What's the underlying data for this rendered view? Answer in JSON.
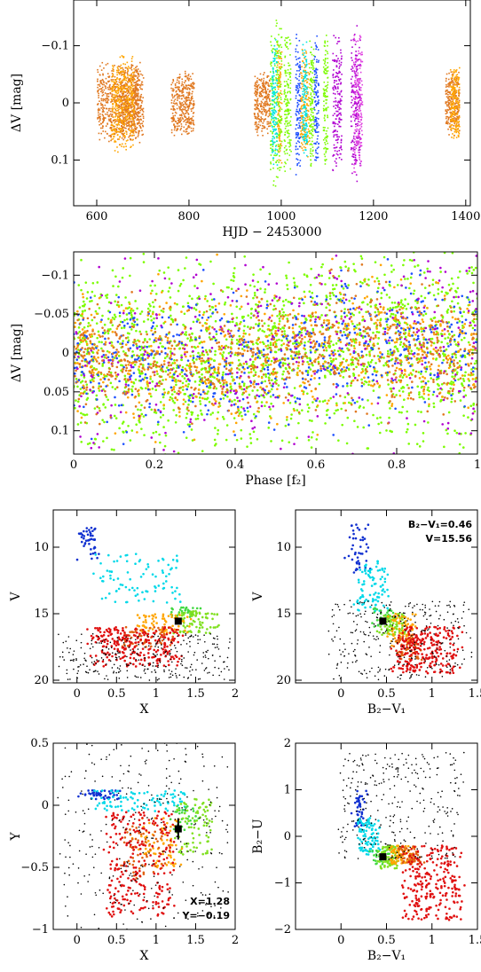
{
  "chart_data": [
    {
      "type": "scatter",
      "panel": "light-curve",
      "xlabel": "HJD − 2453000",
      "ylabel": "ΔV [mag]",
      "xlim": [
        550,
        1410
      ],
      "ylim": [
        0.18,
        -0.18
      ],
      "xticks": [
        600,
        800,
        1000,
        1200,
        1400
      ],
      "xticklabels": [
        "600",
        "800",
        "1000",
        "1200",
        "1400"
      ],
      "yticks": [
        -0.1,
        0,
        0.1
      ],
      "yticklabels": [
        "−0.1",
        "0",
        "0.1"
      ],
      "series": [
        {
          "color": "#e07820",
          "segments": [
            [
              600,
              700,
              0.075
            ],
            [
              760,
              810,
              0.06
            ],
            [
              940,
              975,
              0.06
            ],
            [
              1355,
              1385,
              0.06
            ],
            [
              650,
              690,
              0.07
            ]
          ]
        },
        {
          "color": "#ffa500",
          "segments": [
            [
              630,
              680,
              0.09
            ],
            [
              990,
              1000,
              0.12
            ],
            [
              1040,
              1060,
              0.1
            ],
            [
              1365,
              1385,
              0.07
            ]
          ]
        },
        {
          "color": "#1e50ff",
          "segments": [
            [
              1030,
              1040,
              0.13
            ],
            [
              1070,
              1080,
              0.12
            ]
          ]
        },
        {
          "color": "#7cfc00",
          "segments": [
            [
              975,
              1000,
              0.16
            ],
            [
              1005,
              1020,
              0.13
            ],
            [
              1060,
              1070,
              0.13
            ],
            [
              1090,
              1100,
              0.12
            ]
          ]
        },
        {
          "color": "#00e5e5",
          "segments": [
            [
              978,
              990,
              0.12
            ],
            [
              1045,
              1055,
              0.12
            ]
          ]
        },
        {
          "color": "#b000d0",
          "segments": [
            [
              1110,
              1130,
              0.14
            ],
            [
              1150,
              1170,
              0.14
            ]
          ]
        },
        {
          "color": "#e040e0",
          "segments": [
            [
              1155,
              1175,
              0.13
            ]
          ]
        }
      ]
    },
    {
      "type": "scatter",
      "panel": "phase-diagram",
      "xlabel": "Phase [f₂]",
      "ylabel": "ΔV [mag]",
      "xlim": [
        0,
        1
      ],
      "ylim": [
        0.13,
        -0.13
      ],
      "xticks": [
        0,
        0.2,
        0.4,
        0.6,
        0.8,
        1
      ],
      "xticklabels": [
        "0",
        "0.2",
        "0.4",
        "0.6",
        "0.8",
        "1"
      ],
      "yticks": [
        -0.1,
        -0.05,
        0,
        0.05,
        0.1
      ],
      "yticklabels": [
        "−0.1",
        "−0.05",
        "0",
        "0.05",
        "0.1"
      ],
      "series": [
        {
          "color": "#7cfc00",
          "sigma": 0.06
        },
        {
          "color": "#ffa500",
          "sigma": 0.04
        },
        {
          "color": "#1e50ff",
          "sigma": 0.04
        },
        {
          "color": "#b000d0",
          "sigma": 0.06
        },
        {
          "color": "#e07820",
          "sigma": 0.035
        }
      ]
    },
    {
      "type": "scatter",
      "panel": "cmd-V-X",
      "xlabel": "X",
      "ylabel": "V",
      "xlim": [
        -0.3,
        2.0
      ],
      "ylim": [
        20.2,
        7.2
      ],
      "xticks": [
        0,
        0.5,
        1,
        1.5,
        2
      ],
      "xticklabels": [
        "0",
        "0.5",
        "1",
        "1.5",
        "2"
      ],
      "yticks": [
        10,
        15,
        20
      ],
      "yticklabels": [
        "10",
        "15",
        "20"
      ],
      "marker": {
        "x": 1.28,
        "y": 15.56
      }
    },
    {
      "type": "scatter",
      "panel": "cmd-V-BV",
      "xlabel": "B₂−V₁",
      "ylabel": "V",
      "xlim": [
        -0.5,
        1.5
      ],
      "ylim": [
        20.2,
        7.2
      ],
      "xticks": [
        0,
        0.5,
        1,
        1.5
      ],
      "xticklabels": [
        "0",
        "0.5",
        "1",
        "1.5"
      ],
      "yticks": [
        10,
        15,
        20
      ],
      "yticklabels": [
        "10",
        "15",
        "20"
      ],
      "marker": {
        "x": 0.46,
        "y": 15.56
      },
      "annotations": [
        "B₂−V₁=0.46",
        "V=15.56"
      ]
    },
    {
      "type": "scatter",
      "panel": "cc-Y-X",
      "xlabel": "X",
      "ylabel": "Y",
      "xlim": [
        -0.3,
        2.0
      ],
      "ylim": [
        -1.0,
        0.5
      ],
      "xticks": [
        0,
        0.5,
        1,
        1.5,
        2
      ],
      "xticklabels": [
        "0",
        "0.5",
        "1",
        "1.5",
        "2"
      ],
      "yticks": [
        -1,
        -0.5,
        0,
        0.5
      ],
      "yticklabels": [
        "−1",
        "−0.5",
        "0",
        "0.5"
      ],
      "marker": {
        "x": 1.28,
        "y": -0.19
      },
      "annotations": [
        "X=1.28",
        "Y=−0.19"
      ]
    },
    {
      "type": "scatter",
      "panel": "cc-BU-BV",
      "xlabel": "B₂−V₁",
      "ylabel": "B₂−U",
      "xlim": [
        -0.5,
        1.5
      ],
      "ylim": [
        -2.0,
        2.0
      ],
      "xticks": [
        0,
        0.5,
        1,
        1.5
      ],
      "xticklabels": [
        "0",
        "0.5",
        "1",
        "1.5"
      ],
      "yticks": [
        -2,
        -1,
        0,
        1,
        2
      ],
      "yticklabels": [
        "−2",
        "−1",
        "0",
        "1",
        "2"
      ],
      "marker": {
        "x": 0.46,
        "y": -0.44
      }
    }
  ]
}
